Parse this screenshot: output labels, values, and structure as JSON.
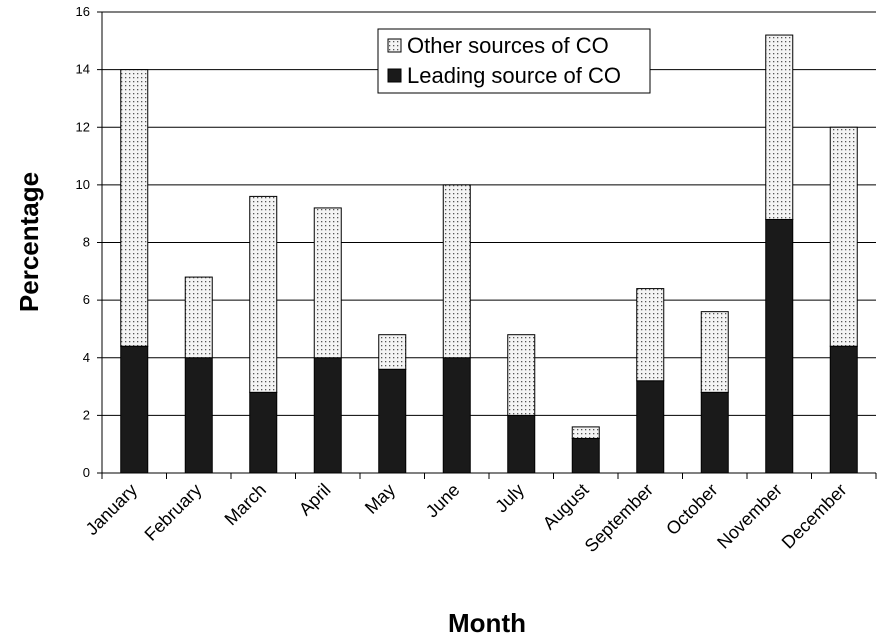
{
  "chart_data": {
    "type": "bar",
    "stacked": true,
    "categories": [
      "January",
      "February",
      "March",
      "April",
      "May",
      "June",
      "July",
      "August",
      "September",
      "October",
      "November",
      "December"
    ],
    "series": [
      {
        "name": "Leading source of CO",
        "values": [
          4.4,
          4.0,
          2.8,
          4.0,
          3.6,
          4.0,
          2.0,
          1.2,
          3.2,
          2.8,
          8.8,
          4.4
        ],
        "color": "#1a1a1a"
      },
      {
        "name": "Other sources of CO",
        "values": [
          9.6,
          2.8,
          6.8,
          5.2,
          1.2,
          6.0,
          2.8,
          0.4,
          3.2,
          2.8,
          6.4,
          7.6
        ],
        "color": "#e6e6e6"
      }
    ],
    "xlabel": "Month",
    "ylabel": "Percentage",
    "ylim": [
      0,
      16
    ],
    "yticks": [
      "0",
      "2",
      "4",
      "6",
      "8",
      "10",
      "12",
      "14",
      "16"
    ],
    "grid": true,
    "legend": {
      "placement": "top-center",
      "entries": [
        "Other sources of CO",
        "Leading source of CO"
      ]
    }
  }
}
